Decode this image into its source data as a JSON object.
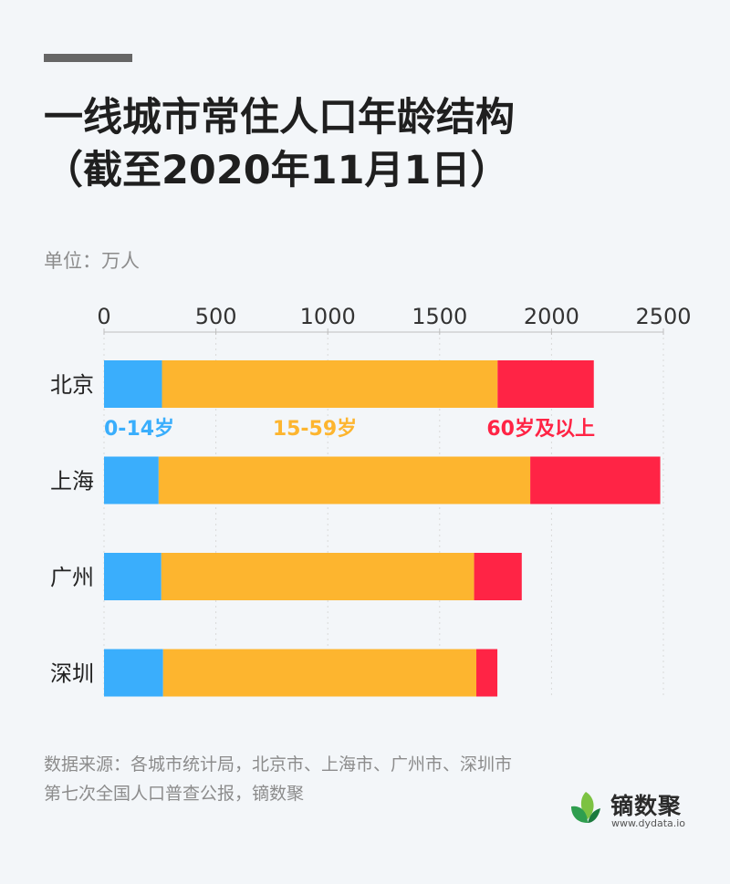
{
  "title_line1": "一线城市常住人口年龄结构",
  "title_line2": "（截至2020年11月1日）",
  "unit_label": "单位：万人",
  "source": "数据来源：各城市统计局，北京市、上海市、广州市、深圳市第七次全国人口普查公报，镝数聚",
  "logo": {
    "name": "镝数聚",
    "url": "www.dydata.io"
  },
  "chart_data": {
    "type": "bar",
    "orientation": "horizontal",
    "stacked": true,
    "categories": [
      "北京",
      "上海",
      "广州",
      "深圳"
    ],
    "series": [
      {
        "name": "0-14岁",
        "color": "#3aaefc",
        "values": [
          259,
          244,
          256,
          264
        ]
      },
      {
        "name": "15-59岁",
        "color": "#fdb52f",
        "values": [
          1500,
          1661,
          1398,
          1400
        ]
      },
      {
        "name": "60岁及以上",
        "color": "#ff2445",
        "values": [
          430,
          581,
          213,
          94
        ]
      }
    ],
    "xaxis": {
      "ticks": [
        0,
        500,
        1000,
        1500,
        2000,
        2500
      ],
      "range": [
        0,
        2500
      ],
      "position": "top"
    },
    "grid": true,
    "legend": "inline labels under first bar"
  }
}
